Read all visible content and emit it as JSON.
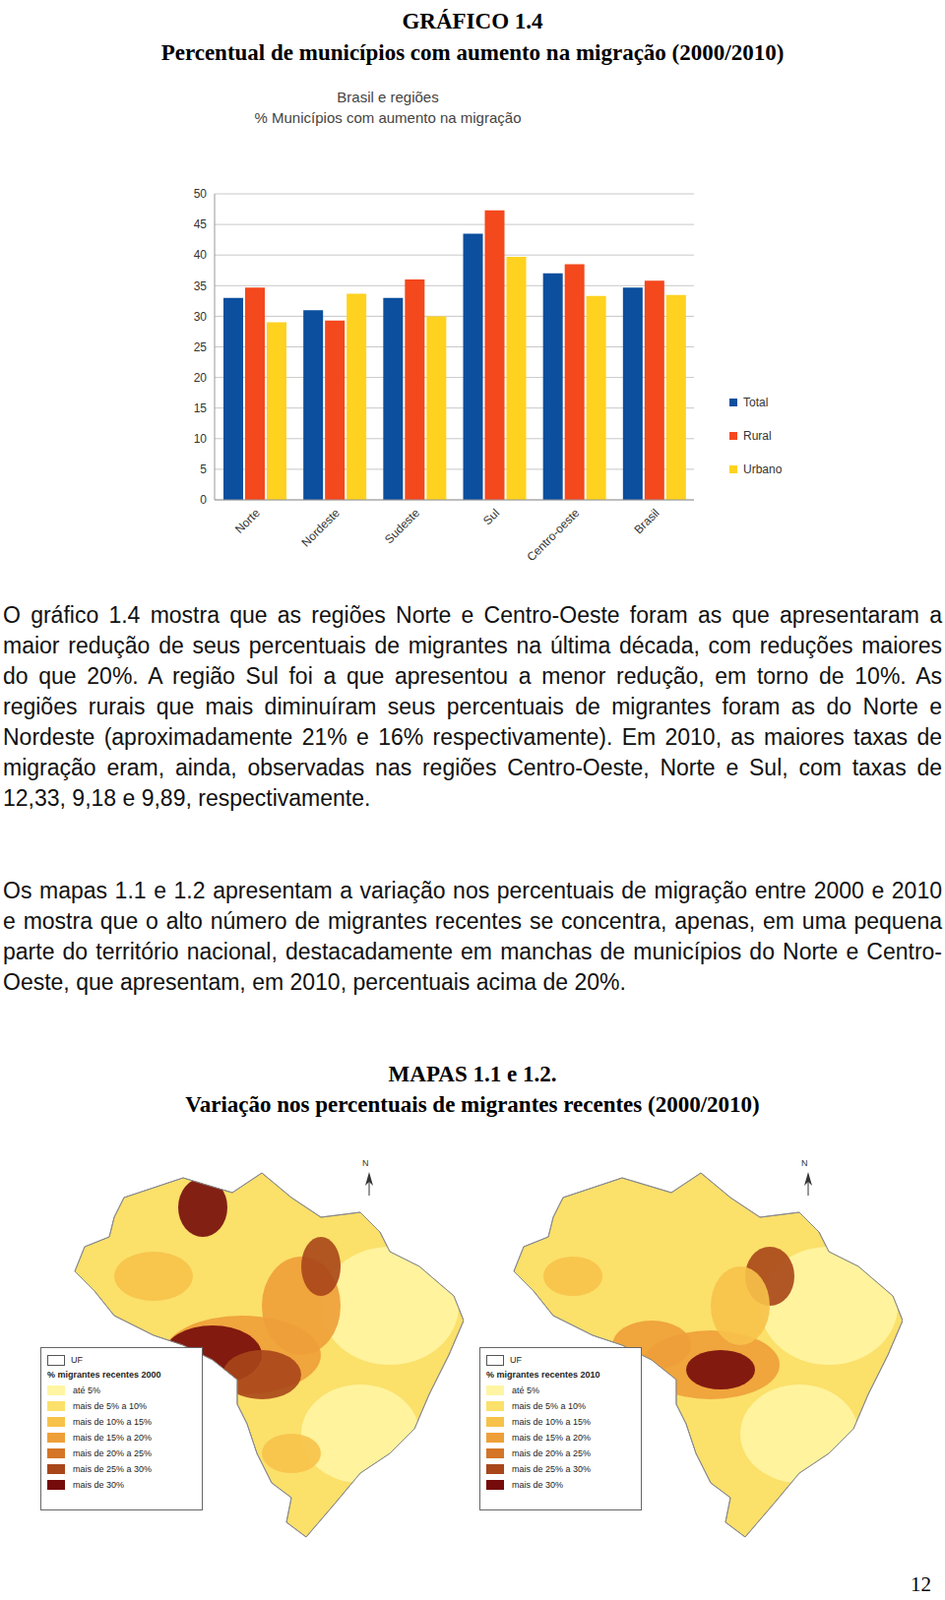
{
  "figure_heading": {
    "label": "GRÁFICO 1.4",
    "caption": "Percentual de municípios com aumento na migração (2000/2010)"
  },
  "chart_data": {
    "type": "bar",
    "title": "Brasil e regiões",
    "subtitle": "% Municípios com aumento na migração",
    "categories": [
      "Norte",
      "Nordeste",
      "Sudeste",
      "Sul",
      "Centro-oeste",
      "Brasil"
    ],
    "series": [
      {
        "name": "Total",
        "color": "#0b4f9e",
        "values": [
          33,
          31,
          33,
          43.5,
          37,
          34.7
        ]
      },
      {
        "name": "Rural",
        "color": "#f4481d",
        "values": [
          34.7,
          29.3,
          36,
          47.3,
          38.5,
          35.8
        ]
      },
      {
        "name": "Urbano",
        "color": "#ffd21f",
        "values": [
          29,
          33.7,
          30,
          39.7,
          33.3,
          33.5
        ]
      }
    ],
    "ylim": [
      0,
      50
    ],
    "yticks": [
      0,
      5,
      10,
      15,
      20,
      25,
      30,
      35,
      40,
      45,
      50
    ],
    "grid": true,
    "legend": "right"
  },
  "paragraphs": [
    "O gráfico 1.4 mostra que as regiões Norte e Centro-Oeste foram as que apresentaram a maior redução de seus percentuais de migrantes na última década, com reduções maiores do que 20%. A região Sul foi a que apresentou a menor redução, em torno de 10%. As regiões rurais que mais diminuíram seus percentuais de migrantes foram as do Norte e Nordeste (aproximadamente 21% e 16% respectivamente). Em 2010, as maiores taxas de migração eram, ainda, observadas nas regiões Centro-Oeste, Norte e Sul, com taxas de 12,33, 9,18 e 9,89, respectivamente.",
    "Os mapas 1.1 e 1.2 apresentam a variação nos percentuais de migração entre 2000 e 2010 e mostra que o alto número de migrantes recentes se concentra, apenas, em uma pequena parte do território nacional, destacadamente em manchas de municípios do Norte e Centro-Oeste, que apresentam, em 2010, percentuais acima de 20%."
  ],
  "maps_heading": {
    "label": "MAPAS 1.1 e 1.2.",
    "caption": "Variação nos percentuais de migrantes recentes (2000/2010)"
  },
  "maps": [
    {
      "legend_title": "% migrantes recentes 2000"
    },
    {
      "legend_title": "% migrantes recentes 2010"
    }
  ],
  "map_legend": {
    "uf_label": "UF",
    "north_label": "N",
    "items": [
      "até 5%",
      "mais de 5% a 10%",
      "mais de 10% a 15%",
      "mais de 15% a 20%",
      "mais de 20% a 25%",
      "mais de 25% a 30%",
      "mais de 30%"
    ],
    "colors": [
      "#fff5a3",
      "#fbe06a",
      "#f7c24a",
      "#ee9f38",
      "#d47527",
      "#a8461a",
      "#760b0b"
    ]
  },
  "page_number": "12"
}
